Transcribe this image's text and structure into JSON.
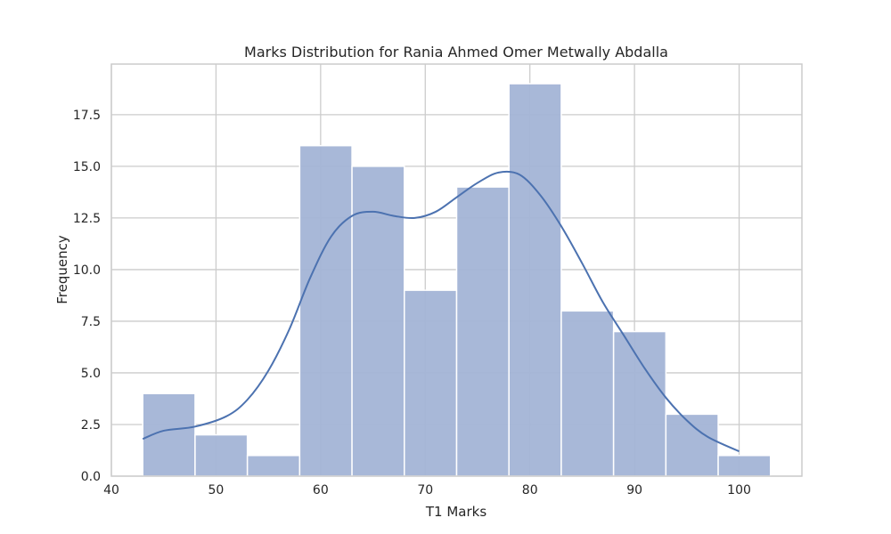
{
  "chart_data": {
    "type": "bar",
    "subtype": "histogram",
    "title": "Marks Distribution for Rania Ahmed Omer Metwally Abdalla",
    "xlabel": "T1 Marks",
    "ylabel": "Frequency",
    "xlim": [
      40,
      106
    ],
    "ylim": [
      0,
      19.95
    ],
    "xticks": [
      40,
      50,
      60,
      70,
      80,
      90,
      100
    ],
    "yticks": [
      0,
      2.5,
      5,
      7.5,
      10,
      12.5,
      15,
      17.5
    ],
    "ytick_labels": [
      "0.0",
      "2.5",
      "5.0",
      "7.5",
      "10.0",
      "12.5",
      "15.0",
      "17.5"
    ],
    "grid": true,
    "bins": [
      {
        "start": 43,
        "end": 48,
        "count": 4
      },
      {
        "start": 48,
        "end": 53,
        "count": 2
      },
      {
        "start": 53,
        "end": 58,
        "count": 1
      },
      {
        "start": 58,
        "end": 63,
        "count": 16
      },
      {
        "start": 63,
        "end": 68,
        "count": 15
      },
      {
        "start": 68,
        "end": 73,
        "count": 9
      },
      {
        "start": 73,
        "end": 78,
        "count": 14
      },
      {
        "start": 78,
        "end": 83,
        "count": 19
      },
      {
        "start": 83,
        "end": 88,
        "count": 8
      },
      {
        "start": 88,
        "end": 93,
        "count": 7
      },
      {
        "start": 93,
        "end": 98,
        "count": 3
      },
      {
        "start": 98,
        "end": 103,
        "count": 1
      }
    ],
    "kde_curve": {
      "x": [
        43,
        45,
        48,
        51,
        53,
        55,
        57,
        59,
        61,
        63,
        65,
        67,
        69,
        71,
        73,
        75,
        77,
        79,
        81,
        83,
        85,
        87,
        89,
        91,
        93,
        95,
        97,
        100
      ],
      "y": [
        1.8,
        2.2,
        2.4,
        2.9,
        3.7,
        5.1,
        7.1,
        9.6,
        11.6,
        12.6,
        12.8,
        12.6,
        12.5,
        12.8,
        13.5,
        14.2,
        14.7,
        14.6,
        13.6,
        12.1,
        10.3,
        8.4,
        6.8,
        5.2,
        3.8,
        2.7,
        1.9,
        1.2
      ]
    },
    "colors": {
      "bar_fill": "#a3b4d6",
      "bar_stroke": "#ffffff",
      "line": "#4c72b0",
      "grid": "#cccccc",
      "frame": "#cccccc",
      "text": "#262626"
    }
  }
}
